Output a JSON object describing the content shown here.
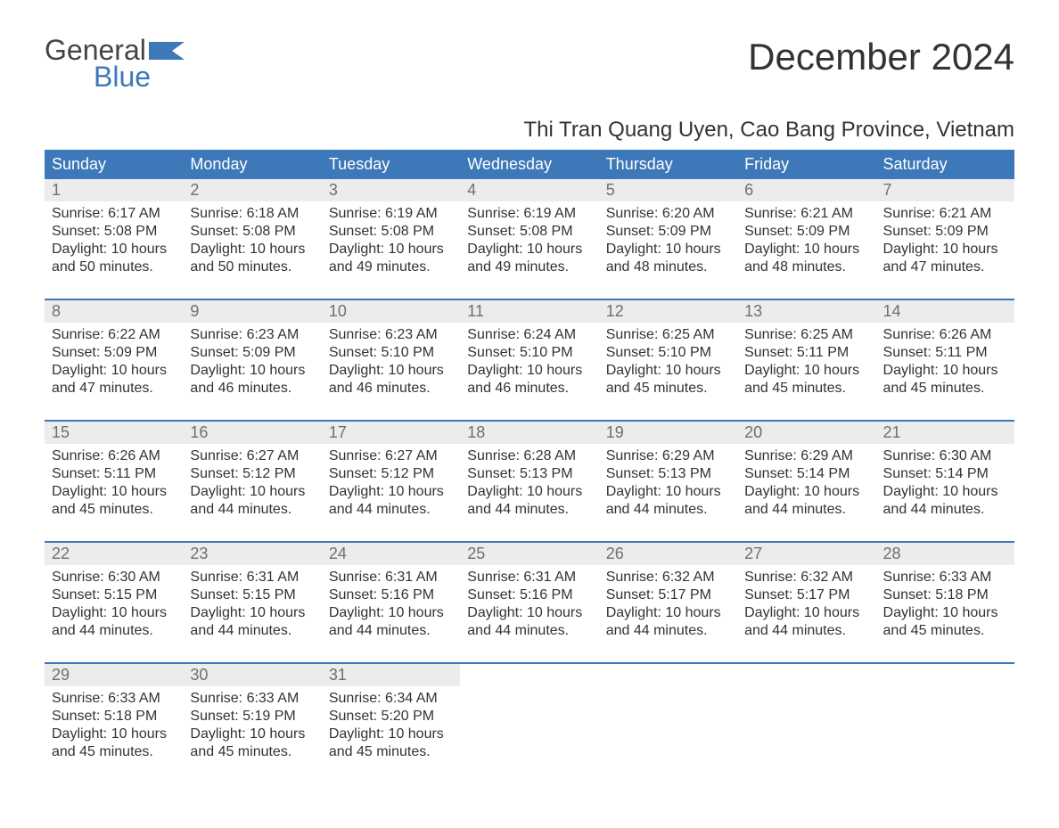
{
  "brand": {
    "word1": "General",
    "word2": "Blue"
  },
  "colors": {
    "header_bg": "#3d78b8",
    "daynum_bg": "#ececec",
    "daynum_color": "#6f6f6f",
    "text": "#333333"
  },
  "title": "December 2024",
  "location": "Thi Tran Quang Uyen, Cao Bang Province, Vietnam",
  "weekdays": [
    "Sunday",
    "Monday",
    "Tuesday",
    "Wednesday",
    "Thursday",
    "Friday",
    "Saturday"
  ],
  "days": {
    "1": {
      "sunrise": "Sunrise: 6:17 AM",
      "sunset": "Sunset: 5:08 PM",
      "day1": "Daylight: 10 hours",
      "day2": "and 50 minutes."
    },
    "2": {
      "sunrise": "Sunrise: 6:18 AM",
      "sunset": "Sunset: 5:08 PM",
      "day1": "Daylight: 10 hours",
      "day2": "and 50 minutes."
    },
    "3": {
      "sunrise": "Sunrise: 6:19 AM",
      "sunset": "Sunset: 5:08 PM",
      "day1": "Daylight: 10 hours",
      "day2": "and 49 minutes."
    },
    "4": {
      "sunrise": "Sunrise: 6:19 AM",
      "sunset": "Sunset: 5:08 PM",
      "day1": "Daylight: 10 hours",
      "day2": "and 49 minutes."
    },
    "5": {
      "sunrise": "Sunrise: 6:20 AM",
      "sunset": "Sunset: 5:09 PM",
      "day1": "Daylight: 10 hours",
      "day2": "and 48 minutes."
    },
    "6": {
      "sunrise": "Sunrise: 6:21 AM",
      "sunset": "Sunset: 5:09 PM",
      "day1": "Daylight: 10 hours",
      "day2": "and 48 minutes."
    },
    "7": {
      "sunrise": "Sunrise: 6:21 AM",
      "sunset": "Sunset: 5:09 PM",
      "day1": "Daylight: 10 hours",
      "day2": "and 47 minutes."
    },
    "8": {
      "sunrise": "Sunrise: 6:22 AM",
      "sunset": "Sunset: 5:09 PM",
      "day1": "Daylight: 10 hours",
      "day2": "and 47 minutes."
    },
    "9": {
      "sunrise": "Sunrise: 6:23 AM",
      "sunset": "Sunset: 5:09 PM",
      "day1": "Daylight: 10 hours",
      "day2": "and 46 minutes."
    },
    "10": {
      "sunrise": "Sunrise: 6:23 AM",
      "sunset": "Sunset: 5:10 PM",
      "day1": "Daylight: 10 hours",
      "day2": "and 46 minutes."
    },
    "11": {
      "sunrise": "Sunrise: 6:24 AM",
      "sunset": "Sunset: 5:10 PM",
      "day1": "Daylight: 10 hours",
      "day2": "and 46 minutes."
    },
    "12": {
      "sunrise": "Sunrise: 6:25 AM",
      "sunset": "Sunset: 5:10 PM",
      "day1": "Daylight: 10 hours",
      "day2": "and 45 minutes."
    },
    "13": {
      "sunrise": "Sunrise: 6:25 AM",
      "sunset": "Sunset: 5:11 PM",
      "day1": "Daylight: 10 hours",
      "day2": "and 45 minutes."
    },
    "14": {
      "sunrise": "Sunrise: 6:26 AM",
      "sunset": "Sunset: 5:11 PM",
      "day1": "Daylight: 10 hours",
      "day2": "and 45 minutes."
    },
    "15": {
      "sunrise": "Sunrise: 6:26 AM",
      "sunset": "Sunset: 5:11 PM",
      "day1": "Daylight: 10 hours",
      "day2": "and 45 minutes."
    },
    "16": {
      "sunrise": "Sunrise: 6:27 AM",
      "sunset": "Sunset: 5:12 PM",
      "day1": "Daylight: 10 hours",
      "day2": "and 44 minutes."
    },
    "17": {
      "sunrise": "Sunrise: 6:27 AM",
      "sunset": "Sunset: 5:12 PM",
      "day1": "Daylight: 10 hours",
      "day2": "and 44 minutes."
    },
    "18": {
      "sunrise": "Sunrise: 6:28 AM",
      "sunset": "Sunset: 5:13 PM",
      "day1": "Daylight: 10 hours",
      "day2": "and 44 minutes."
    },
    "19": {
      "sunrise": "Sunrise: 6:29 AM",
      "sunset": "Sunset: 5:13 PM",
      "day1": "Daylight: 10 hours",
      "day2": "and 44 minutes."
    },
    "20": {
      "sunrise": "Sunrise: 6:29 AM",
      "sunset": "Sunset: 5:14 PM",
      "day1": "Daylight: 10 hours",
      "day2": "and 44 minutes."
    },
    "21": {
      "sunrise": "Sunrise: 6:30 AM",
      "sunset": "Sunset: 5:14 PM",
      "day1": "Daylight: 10 hours",
      "day2": "and 44 minutes."
    },
    "22": {
      "sunrise": "Sunrise: 6:30 AM",
      "sunset": "Sunset: 5:15 PM",
      "day1": "Daylight: 10 hours",
      "day2": "and 44 minutes."
    },
    "23": {
      "sunrise": "Sunrise: 6:31 AM",
      "sunset": "Sunset: 5:15 PM",
      "day1": "Daylight: 10 hours",
      "day2": "and 44 minutes."
    },
    "24": {
      "sunrise": "Sunrise: 6:31 AM",
      "sunset": "Sunset: 5:16 PM",
      "day1": "Daylight: 10 hours",
      "day2": "and 44 minutes."
    },
    "25": {
      "sunrise": "Sunrise: 6:31 AM",
      "sunset": "Sunset: 5:16 PM",
      "day1": "Daylight: 10 hours",
      "day2": "and 44 minutes."
    },
    "26": {
      "sunrise": "Sunrise: 6:32 AM",
      "sunset": "Sunset: 5:17 PM",
      "day1": "Daylight: 10 hours",
      "day2": "and 44 minutes."
    },
    "27": {
      "sunrise": "Sunrise: 6:32 AM",
      "sunset": "Sunset: 5:17 PM",
      "day1": "Daylight: 10 hours",
      "day2": "and 44 minutes."
    },
    "28": {
      "sunrise": "Sunrise: 6:33 AM",
      "sunset": "Sunset: 5:18 PM",
      "day1": "Daylight: 10 hours",
      "day2": "and 45 minutes."
    },
    "29": {
      "sunrise": "Sunrise: 6:33 AM",
      "sunset": "Sunset: 5:18 PM",
      "day1": "Daylight: 10 hours",
      "day2": "and 45 minutes."
    },
    "30": {
      "sunrise": "Sunrise: 6:33 AM",
      "sunset": "Sunset: 5:19 PM",
      "day1": "Daylight: 10 hours",
      "day2": "and 45 minutes."
    },
    "31": {
      "sunrise": "Sunrise: 6:34 AM",
      "sunset": "Sunset: 5:20 PM",
      "day1": "Daylight: 10 hours",
      "day2": "and 45 minutes."
    }
  },
  "layout": [
    [
      1,
      2,
      3,
      4,
      5,
      6,
      7
    ],
    [
      8,
      9,
      10,
      11,
      12,
      13,
      14
    ],
    [
      15,
      16,
      17,
      18,
      19,
      20,
      21
    ],
    [
      22,
      23,
      24,
      25,
      26,
      27,
      28
    ],
    [
      29,
      30,
      31,
      0,
      0,
      0,
      0
    ]
  ]
}
